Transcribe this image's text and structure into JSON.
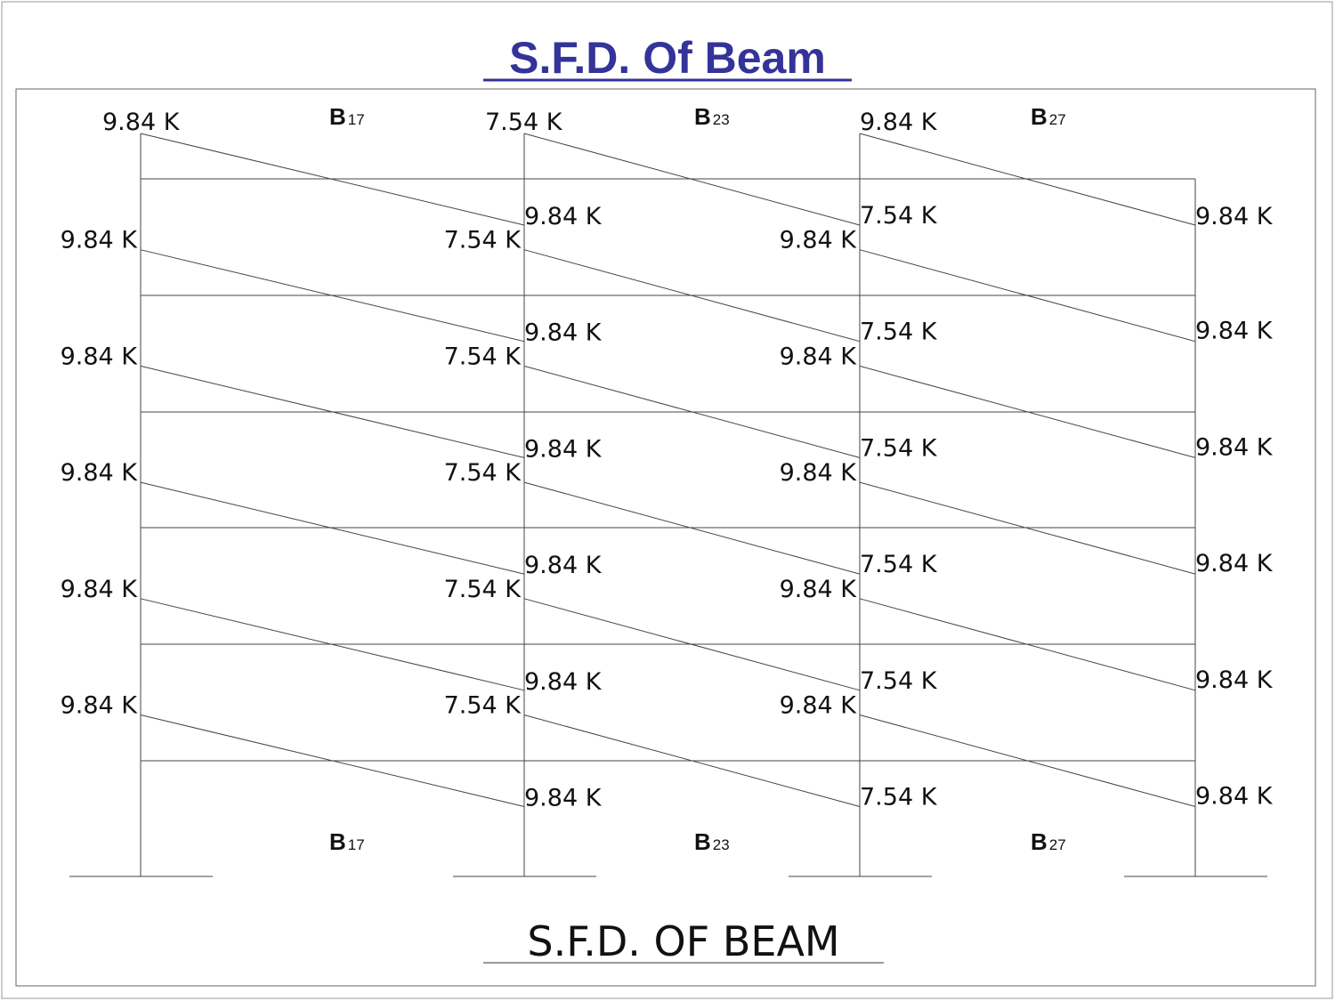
{
  "title": "S.F.D.  Of  Beam",
  "caption": "S.F.D.  OF   BEAM",
  "beam_labels": [
    {
      "name": "B",
      "sub": "17"
    },
    {
      "name": "B",
      "sub": "23"
    },
    {
      "name": "B",
      "sub": "27"
    }
  ],
  "floors": [
    {
      "bays": [
        {
          "start": "9.84 K",
          "end": "9.84 K"
        },
        {
          "start": "7.54 K",
          "end": "7.54 K"
        },
        {
          "start": "9.84 K",
          "end": "9.84 K"
        }
      ]
    },
    {
      "bays": [
        {
          "start": "9.84 K",
          "end": "9.84 K"
        },
        {
          "start": "7.54 K",
          "end": "7.54 K"
        },
        {
          "start": "9.84 K",
          "end": "9.84 K"
        }
      ]
    },
    {
      "bays": [
        {
          "start": "9.84 K",
          "end": "9.84 K"
        },
        {
          "start": "7.54 K",
          "end": "7.54 K"
        },
        {
          "start": "9.84 K",
          "end": "9.84 K"
        }
      ]
    },
    {
      "bays": [
        {
          "start": "9.84 K",
          "end": "9.84 K"
        },
        {
          "start": "7.54 K",
          "end": "7.54 K"
        },
        {
          "start": "9.84 K",
          "end": "9.84 K"
        }
      ]
    },
    {
      "bays": [
        {
          "start": "9.84 K",
          "end": "9.84 K"
        },
        {
          "start": "7.54 K",
          "end": "7.54 K"
        },
        {
          "start": "9.84 K",
          "end": "9.84 K"
        }
      ]
    },
    {
      "bays": [
        {
          "start": "9.84 K",
          "end": "9.84 K"
        },
        {
          "start": "7.54 K",
          "end": "7.54 K"
        },
        {
          "start": "9.84 K",
          "end": "9.84 K"
        }
      ]
    }
  ]
}
